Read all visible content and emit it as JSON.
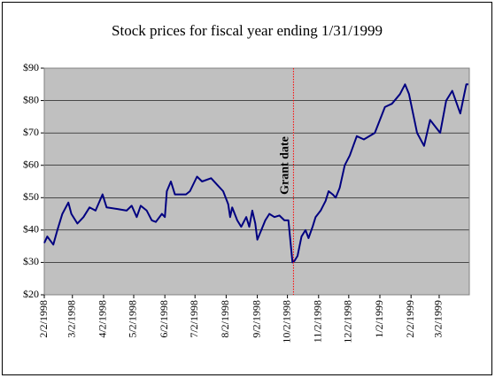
{
  "chart_data": {
    "type": "line",
    "title": "Stock prices for fiscal year ending 1/31/1999",
    "x": [
      "2/2/1998",
      "2/5/1998",
      "2/11/1998",
      "2/15/1998",
      "2/20/1998",
      "2/26/1998",
      "3/1/1998",
      "3/7/1998",
      "3/13/1998",
      "3/19/1998",
      "3/25/1998",
      "4/1/1998",
      "4/5/1998",
      "4/16/1998",
      "4/25/1998",
      "4/30/1998",
      "5/5/1998",
      "5/9/1998",
      "5/15/1998",
      "5/20/1998",
      "5/24/1998",
      "5/30/1998",
      "6/2/1998",
      "6/4/1998",
      "6/8/1998",
      "6/12/1998",
      "6/23/1998",
      "6/27/1998",
      "7/4/1998",
      "7/9/1998",
      "7/18/1998",
      "7/24/1998",
      "7/30/1998",
      "8/4/1998",
      "8/6/1998",
      "8/8/1998",
      "8/13/1998",
      "8/17/1998",
      "8/22/1998",
      "8/25/1998",
      "8/28/1998",
      "8/31/1998",
      "9/2/1998",
      "9/6/1998",
      "9/10/1998",
      "9/14/1998",
      "9/19/1998",
      "9/24/1998",
      "9/29/1998",
      "10/3/1998",
      "10/7/1998",
      "10/9/1998",
      "10/12/1998",
      "10/16/1998",
      "10/20/1998",
      "10/23/1998",
      "10/27/1998",
      "10/30/1998",
      "11/4/1998",
      "11/9/1998",
      "11/12/1998",
      "11/16/1998",
      "11/19/1998",
      "11/23/1998",
      "11/28/1998",
      "12/3/1998",
      "12/10/1998",
      "12/17/1998",
      "12/28/1998",
      "1/7/1999",
      "1/14/1999",
      "1/22/1999",
      "1/27/1999",
      "1/31/1999",
      "2/8/1999",
      "2/15/1999",
      "2/21/1999",
      "3/3/1999",
      "3/9/1999",
      "3/15/1999",
      "3/23/1999",
      "3/29/1999",
      "3/31/1999"
    ],
    "series": [
      {
        "name": "Stock price",
        "color": "#000080",
        "values": [
          36,
          38,
          35.5,
          40,
          45,
          48.5,
          45,
          42,
          44,
          47,
          46,
          51,
          47,
          46.5,
          46,
          47.5,
          44,
          47.5,
          46,
          43,
          42.5,
          45,
          44,
          52,
          55,
          51,
          51,
          52,
          56.5,
          55,
          56,
          54,
          52,
          48,
          44,
          47,
          43,
          41,
          44,
          41,
          46,
          42,
          37,
          40,
          43,
          45,
          44,
          44.5,
          43,
          43,
          30,
          30.5,
          32,
          38,
          40,
          37.5,
          41,
          44,
          46,
          49,
          52,
          51,
          50,
          53,
          60,
          63,
          69,
          68,
          70,
          78,
          79,
          82,
          85,
          82,
          70,
          66,
          74,
          70,
          80,
          83,
          76,
          85,
          85
        ]
      }
    ],
    "xticks": [
      "2/2/1998",
      "3/2/1998",
      "4/2/1998",
      "5/2/1998",
      "6/2/1998",
      "7/2/1998",
      "8/2/1998",
      "9/2/1998",
      "10/2/1998",
      "11/2/1998",
      "12/2/1998",
      "1/2/1999",
      "2/2/1999",
      "3/2/1999"
    ],
    "xlim": [
      "2/2/1998",
      "4/1/1999"
    ],
    "ylim": [
      20,
      90
    ],
    "yticks": [
      {
        "value": 20,
        "label": "$20"
      },
      {
        "value": 30,
        "label": "$30"
      },
      {
        "value": 40,
        "label": "$40"
      },
      {
        "value": 50,
        "label": "$50"
      },
      {
        "value": 60,
        "label": "$60"
      },
      {
        "value": 70,
        "label": "$70"
      },
      {
        "value": 80,
        "label": "$80"
      },
      {
        "value": 90,
        "label": "$90"
      }
    ],
    "grid": true,
    "annotations": [
      {
        "text": "Grant date",
        "x": "10/8/1998",
        "color": "#ff0000"
      }
    ]
  }
}
